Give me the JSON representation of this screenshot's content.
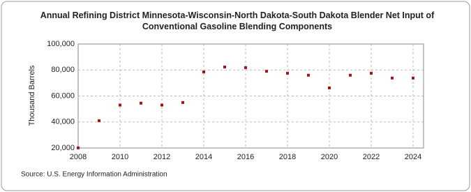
{
  "chart_data": {
    "type": "scatter",
    "title": "Annual Refining District Minnesota-Wisconsin-North Dakota-South Dakota Blender Net Input of Conventional Gasoline Blending Components",
    "y_label": "Thousand Barrels",
    "source": "Source: U.S. Energy Information Administration",
    "x": [
      2008,
      2009,
      2010,
      2011,
      2012,
      2013,
      2014,
      2015,
      2016,
      2017,
      2018,
      2019,
      2020,
      2021,
      2022,
      2023,
      2024
    ],
    "values": [
      20100,
      41000,
      53000,
      54500,
      53000,
      55000,
      78500,
      82300,
      81800,
      79000,
      77500,
      76000,
      66200,
      76000,
      77500,
      73800,
      73800
    ],
    "color": "#a31515",
    "xlim": [
      2008,
      2024.5
    ],
    "xticks": [
      2008,
      2010,
      2012,
      2014,
      2016,
      2018,
      2020,
      2022,
      2024
    ],
    "ylim": [
      20000,
      100000
    ],
    "yticks": [
      {
        "value": 20000,
        "label": "20,000"
      },
      {
        "value": 40000,
        "label": "40,000"
      },
      {
        "value": 60000,
        "label": "60,000"
      },
      {
        "value": 80000,
        "label": "80,000"
      },
      {
        "value": 100000,
        "label": "100,000"
      }
    ],
    "grid": true
  }
}
